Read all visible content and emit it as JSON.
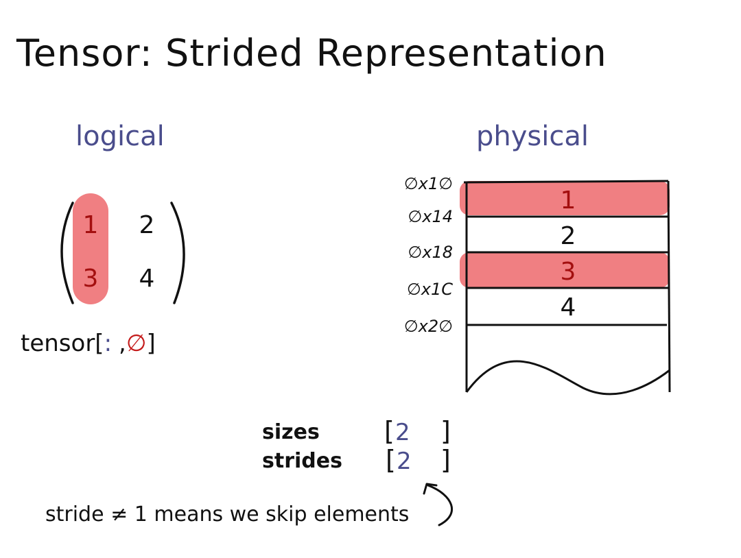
{
  "title": "Tensor: Strided Representation",
  "logical": {
    "heading": "logical",
    "matrix": [
      [
        "1",
        "2"
      ],
      [
        "3",
        "4"
      ]
    ],
    "expression": {
      "prefix": "tensor[",
      "colon": ":",
      "comma": ",",
      "index": "∅",
      "suffix": "]"
    }
  },
  "physical": {
    "heading": "physical",
    "rows": [
      {
        "address": "∅x1∅",
        "value": "1",
        "highlighted": true
      },
      {
        "address": "∅x14",
        "value": "2",
        "highlighted": false
      },
      {
        "address": "∅x18",
        "value": "3",
        "highlighted": true
      },
      {
        "address": "∅x1C",
        "value": "4",
        "highlighted": false
      }
    ],
    "end_address": "∅x2∅"
  },
  "meta": {
    "sizes_label": "sizes",
    "sizes_value": "2",
    "strides_label": "strides",
    "strides_value": "2",
    "open_bracket": "[",
    "close_bracket": "]"
  },
  "note": "stride ≠ 1 means we skip elements",
  "colors": {
    "highlight": "#f07f82",
    "highlight_text": "#a30f0f",
    "accent": "#4a4d8c",
    "ink": "#111111"
  }
}
